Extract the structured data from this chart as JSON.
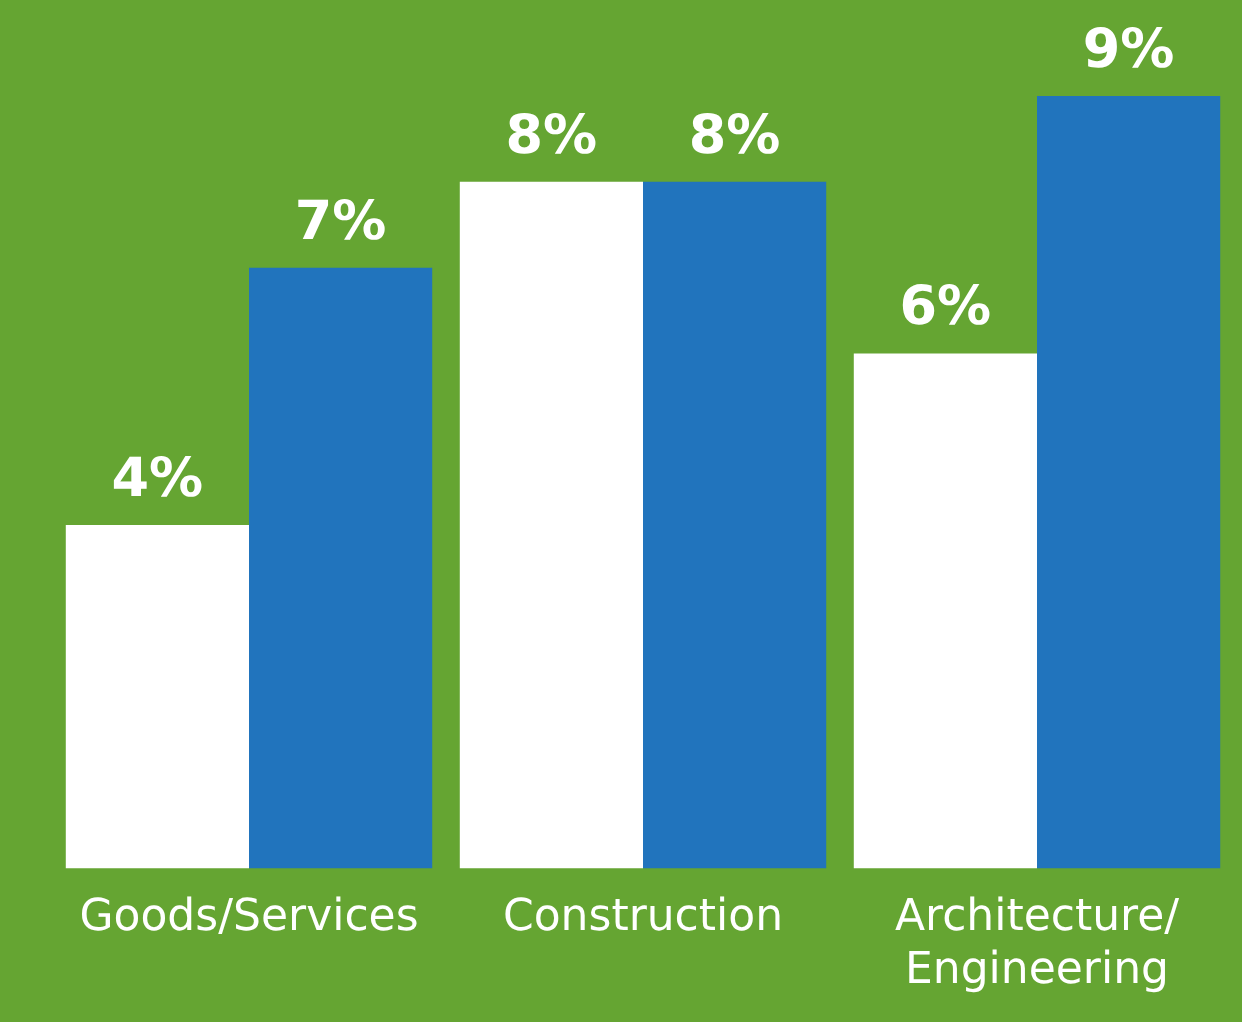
{
  "chart_data": {
    "type": "bar",
    "categories": [
      "Goods/Services",
      "Construction",
      "Architecture/ Engineering"
    ],
    "series": [
      {
        "color": "#ffffff",
        "values": [
          4,
          8,
          6
        ],
        "value_labels": [
          "4%",
          "8%",
          "6%"
        ]
      },
      {
        "color": "#2174bd",
        "values": [
          7,
          8,
          9
        ],
        "value_labels": [
          "7%",
          "8%",
          "9%"
        ]
      }
    ],
    "ylim": [
      0,
      9
    ],
    "grid": false,
    "legend": false,
    "tick_labels": "x"
  }
}
